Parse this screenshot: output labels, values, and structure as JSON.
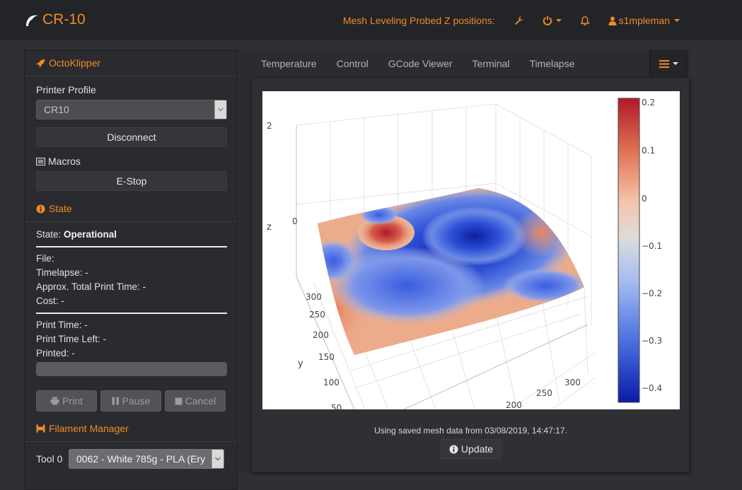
{
  "navbar": {
    "brand": "CR-10",
    "mesh_label": "Mesh Leveling Probed Z positions:",
    "settings_icon": "wrench-icon",
    "power_icon": "power-icon",
    "bell_icon": "bell-icon",
    "user": "s1mpleman",
    "accent_color": "#f08a24"
  },
  "sidebar": {
    "octoklipper": {
      "title": "OctoKlipper",
      "printer_profile_label": "Printer Profile",
      "printer_profile_value": "CR10",
      "disconnect_label": "Disconnect",
      "macros_label": "Macros",
      "estop_label": "E-Stop"
    },
    "state": {
      "title": "State",
      "state_label": "State:",
      "state_value": "Operational",
      "file_label": "File:",
      "timelapse": "Timelapse: -",
      "approx_total": "Approx. Total Print Time: -",
      "cost": "Cost: -",
      "print_time": "Print Time: -",
      "print_time_left": "Print Time Left: -",
      "printed": "Printed: -",
      "progress": 0,
      "print_label": "Print",
      "pause_label": "Pause",
      "cancel_label": "Cancel"
    },
    "filament": {
      "title": "Filament Manager",
      "tool_label": "Tool 0",
      "tool_value": "0062 - White 785g - PLA (Ery"
    }
  },
  "main": {
    "tabs": [
      "Temperature",
      "Control",
      "GCode Viewer",
      "Terminal",
      "Timelapse"
    ],
    "menu_icon": "list-icon",
    "mesh_info": "Using saved mesh data from 03/08/2019, 14:47:17.",
    "update_label": "Update"
  },
  "chart_data": {
    "type": "surface",
    "title": "",
    "zlabel": "z",
    "ylabel": "y",
    "z_ticks": [
      "2",
      "0"
    ],
    "y_ticks": [
      "300",
      "250",
      "200",
      "150",
      "100",
      "50"
    ],
    "x_ticks": [
      "300",
      "250",
      "200"
    ],
    "colorscale": "RdBu (reversed)",
    "colorbar": {
      "range": [
        -0.45,
        0.22
      ],
      "ticks": [
        "0.2",
        "0.1",
        "0",
        "−0.1",
        "−0.2",
        "−0.3",
        "−0.4"
      ]
    },
    "features": [
      {
        "region": "back-left",
        "z": 0.2
      },
      {
        "region": "center",
        "z": -0.43
      },
      {
        "region": "front-left",
        "z": 0.08
      },
      {
        "region": "back-right",
        "z": 0.05
      },
      {
        "region": "front-right",
        "z": -0.1
      }
    ]
  }
}
